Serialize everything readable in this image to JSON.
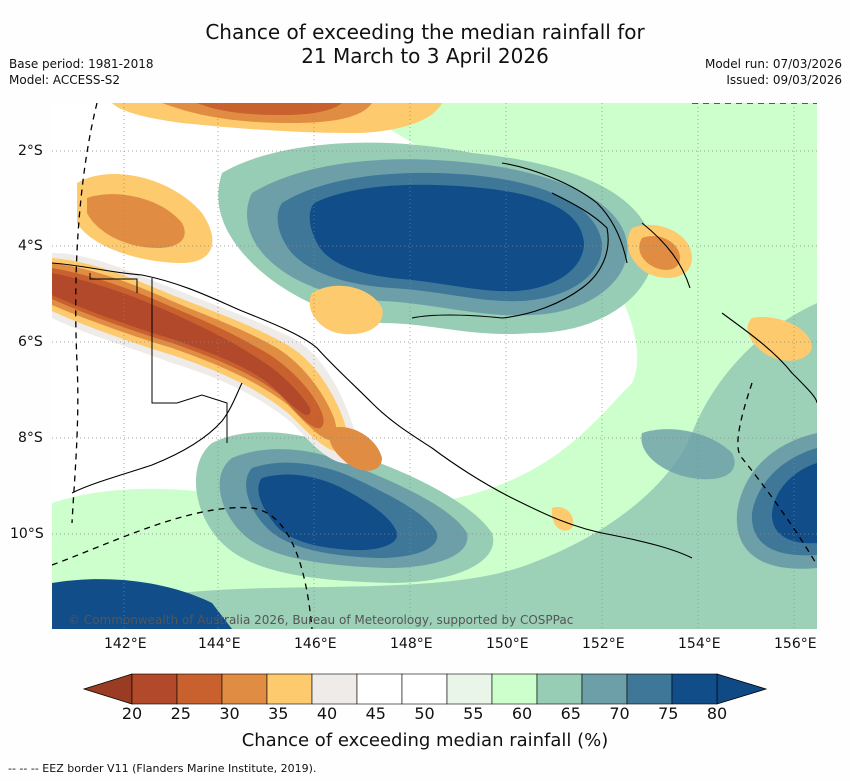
{
  "title_line1": "Chance of exceeding the median rainfall for",
  "title_line2": "21 March to 3 April 2026",
  "base_period": "Base period: 1981-2018",
  "model": "Model: ACCESS-S2",
  "model_run": "Model run: 07/03/2026",
  "issued": "Issued: 09/03/2026",
  "copyright": "© Commonwealth of Australia 2026, Bureau of Meteorology, supported by COSPPac",
  "lat_ticks": [
    "2°S",
    "4°S",
    "6°S",
    "8°S",
    "10°S"
  ],
  "lon_ticks": [
    "142°E",
    "144°E",
    "146°E",
    "148°E",
    "150°E",
    "152°E",
    "154°E",
    "156°E"
  ],
  "colorbar": {
    "labels": [
      "20",
      "25",
      "30",
      "35",
      "40",
      "45",
      "50",
      "55",
      "60",
      "65",
      "70",
      "75",
      "80"
    ],
    "colors": [
      "#b1492a",
      "#c8612e",
      "#e08d43",
      "#fdca6d",
      "#eeebe8",
      "#ffffff",
      "#ffffff",
      "#e8f5e8",
      "#ccffcc",
      "#97ccb5",
      "#6c9fa8",
      "#3f7799",
      "#104d89"
    ],
    "under_color": "#9a3b24",
    "over_color": "#0f4a85"
  },
  "colorbar_title": "Chance of exceeding median rainfall (%)",
  "footer": "-- -- -- EEZ border V11 (Flanders Marine Institute, 2019)."
}
